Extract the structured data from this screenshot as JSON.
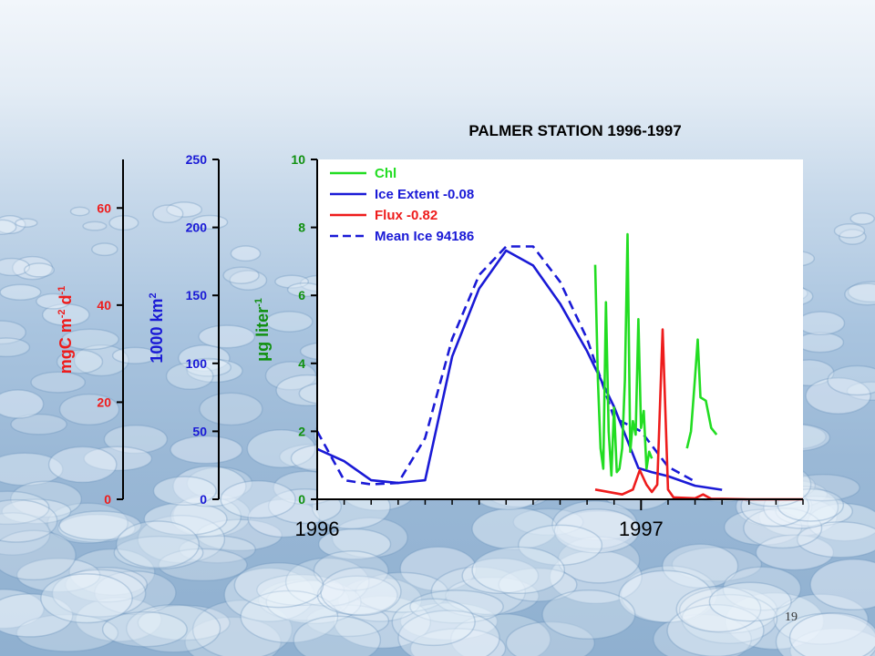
{
  "slide": {
    "page_number": "19"
  },
  "colors": {
    "chl": "#22dd22",
    "ice": "#1a1ad6",
    "flux": "#ee1c1c",
    "axis": "#000000"
  },
  "chart_data": {
    "type": "line",
    "title": "PALMER STATION 1996-1997",
    "x_axis": {
      "tick_labels": [
        "1996",
        "1997"
      ],
      "tick_values": [
        0,
        12
      ],
      "range": [
        0,
        18
      ]
    },
    "y_axes": [
      {
        "id": "flux",
        "label_main": "mgC m",
        "label_sup1": "-2",
        "label_mid": " d",
        "label_sup2": "-1",
        "range": [
          0,
          70
        ],
        "ticks": [
          0,
          20,
          40,
          60
        ],
        "color": "#ee1c1c"
      },
      {
        "id": "ice",
        "label_main": "1000 km",
        "label_sup1": "2",
        "label_mid": "",
        "label_sup2": "",
        "range": [
          0,
          250
        ],
        "ticks": [
          0,
          50,
          100,
          150,
          200,
          250
        ],
        "color": "#1a1ad6"
      },
      {
        "id": "chl",
        "label_main": "μg liter",
        "label_sup1": "-1",
        "label_mid": "",
        "label_sup2": "",
        "range": [
          0,
          10
        ],
        "ticks": [
          0,
          2,
          4,
          6,
          8,
          10
        ],
        "color": "#109010"
      }
    ],
    "legend": [
      {
        "label": "Chl",
        "series": "chl"
      },
      {
        "label": "Ice Extent  -0.08",
        "series": "ice_extent"
      },
      {
        "label": "Flux   -0.82",
        "series": "flux"
      },
      {
        "label": "Mean Ice  94186",
        "series": "mean_ice"
      }
    ],
    "legend_position": "top-left",
    "series": [
      {
        "id": "ice_extent",
        "axis": "ice",
        "color": "#1a1ad6",
        "dashed": false,
        "x": [
          0,
          1,
          2,
          3,
          4,
          5,
          6,
          7,
          8,
          9,
          10,
          11,
          11.9,
          12.4,
          13,
          14,
          15
        ],
        "y": [
          37,
          28,
          14,
          12,
          14,
          105,
          155,
          183,
          172,
          144,
          109,
          68,
          23,
          20,
          17,
          10,
          7
        ]
      },
      {
        "id": "mean_ice",
        "axis": "ice",
        "color": "#1a1ad6",
        "dashed": true,
        "x": [
          0,
          1,
          2,
          3,
          4,
          5,
          6,
          7,
          8,
          9,
          10,
          11,
          12,
          13,
          14
        ],
        "y": [
          50,
          14,
          11,
          12,
          45,
          118,
          165,
          186,
          186,
          160,
          118,
          60,
          50,
          24,
          13
        ]
      },
      {
        "id": "flux",
        "axis": "flux",
        "color": "#ee1c1c",
        "dashed": false,
        "x": [
          10.3,
          11.3,
          11.7,
          11.95,
          12.2,
          12.4,
          12.6,
          12.8,
          13,
          13.2,
          14,
          14.3,
          14.6,
          15,
          16,
          18
        ],
        "y": [
          2,
          1,
          2,
          6,
          3,
          1.5,
          3,
          35,
          2,
          0.4,
          0.2,
          1,
          0.1,
          0.1,
          0,
          0
        ]
      },
      {
        "id": "chl",
        "axis": "chl",
        "color": "#22dd22",
        "dashed": false,
        "x": [
          10.3,
          10.4,
          10.5,
          10.6,
          10.7,
          10.8,
          10.9,
          11.0,
          11.1,
          11.2,
          11.3,
          11.4,
          11.5,
          11.6,
          11.7,
          11.8,
          11.9,
          12.0,
          12.1,
          12.2,
          12.3,
          12.4
        ],
        "y": [
          6.9,
          3.5,
          1.5,
          0.9,
          5.8,
          2.0,
          0.7,
          2.7,
          0.8,
          0.9,
          1.5,
          3.5,
          7.8,
          1.4,
          2.3,
          1.9,
          5.3,
          2.1,
          2.6,
          0.9,
          1.4,
          1.2
        ]
      },
      {
        "id": "chl_late",
        "axis": "chl",
        "color": "#22dd22",
        "dashed": false,
        "x": [
          13.7,
          13.85,
          14.0,
          14.1,
          14.2,
          14.4,
          14.6,
          14.8
        ],
        "y": [
          1.5,
          2.0,
          3.6,
          4.7,
          3.0,
          2.9,
          2.1,
          1.9
        ]
      }
    ]
  }
}
